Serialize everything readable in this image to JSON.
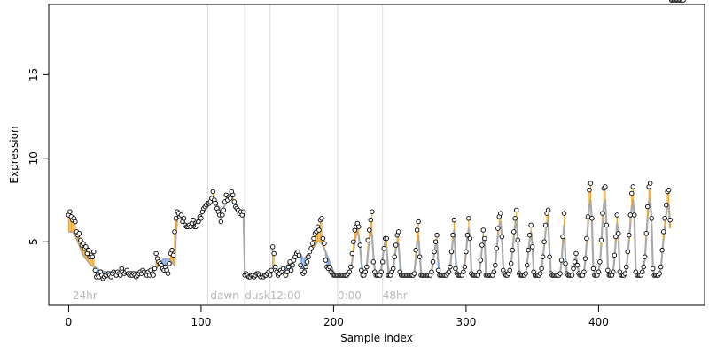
{
  "chart_data": {
    "type": "scatter",
    "title": "",
    "xlabel": "Sample index",
    "ylabel": "Expression",
    "xlim": [
      -15,
      480
    ],
    "ylim": [
      1.2,
      19.2
    ],
    "x_ticks": [
      0,
      100,
      200,
      300,
      400
    ],
    "x_tick_labels": [
      "0",
      "100",
      "200",
      "300",
      "400"
    ],
    "y_ticks": [
      5,
      10,
      15
    ],
    "y_tick_labels": [
      "5",
      "10",
      "15"
    ],
    "grid": false,
    "legend": "none",
    "colors": {
      "trend_line": "#aaaaaa",
      "residual_up": "#f5a623",
      "residual_down": "#7ea7e0",
      "point_fill": "#ffffff",
      "point_stroke": "#000000",
      "divider": "#dcdcdc",
      "annotation_text": "#b8b8b8"
    },
    "segments": [
      {
        "label": "24hr",
        "x": 3
      },
      {
        "label": "dawn",
        "x": 107
      },
      {
        "label": "dusk",
        "x": 133
      },
      {
        "label": "12:00",
        "x": 152
      },
      {
        "label": "0:00",
        "x": 203
      },
      {
        "label": "48hr",
        "x": 237
      }
    ],
    "dividers_x": [
      105,
      133,
      152,
      203,
      237
    ],
    "points_x": [
      0,
      1,
      2,
      3,
      4,
      5,
      6,
      7,
      8,
      9,
      10,
      11,
      12,
      13,
      14,
      15,
      16,
      17,
      18,
      19,
      20,
      21,
      22,
      23,
      24,
      25,
      26,
      27,
      28,
      29,
      30,
      31,
      32,
      33,
      34,
      35,
      36,
      37,
      38,
      39,
      40,
      41,
      42,
      43,
      44,
      45,
      46,
      47,
      48,
      49,
      50,
      51,
      52,
      53,
      54,
      55,
      56,
      57,
      58,
      59,
      60,
      61,
      62,
      63,
      64,
      65,
      66,
      67,
      68,
      69,
      70,
      71,
      72,
      73,
      74,
      75,
      76,
      77,
      78,
      79,
      80,
      81,
      82,
      83,
      84,
      85,
      86,
      87,
      88,
      89,
      90,
      91,
      92,
      93,
      94,
      95,
      96,
      97,
      98,
      99,
      100,
      101,
      102,
      103,
      104,
      105,
      106,
      107,
      108,
      109,
      110,
      111,
      112,
      113,
      114,
      115,
      116,
      117,
      118,
      119,
      120,
      121,
      122,
      123,
      124,
      125,
      126,
      127,
      128,
      129,
      130,
      131,
      132,
      133,
      134,
      135,
      136,
      137,
      138,
      139,
      140,
      141,
      142,
      143,
      144,
      145,
      146,
      147,
      148,
      149,
      150,
      151,
      152,
      153,
      154,
      155,
      156,
      157,
      158,
      159,
      160,
      161,
      162,
      163,
      164,
      165,
      166,
      167,
      168,
      169,
      170,
      171,
      172,
      173,
      174,
      175,
      176,
      177,
      178,
      179,
      180,
      181,
      182,
      183,
      184,
      185,
      186,
      187,
      188,
      189,
      190,
      191,
      192,
      193,
      194,
      195,
      196,
      197,
      198,
      199,
      200,
      201,
      202,
      203,
      204,
      205,
      206,
      207,
      208,
      209,
      210,
      211,
      212,
      213,
      214,
      215,
      216,
      217,
      218,
      219,
      220,
      221,
      222,
      223,
      224,
      225,
      226,
      227,
      228,
      229,
      230,
      231,
      232,
      233,
      234,
      235,
      236,
      237,
      238,
      239,
      240,
      241,
      242,
      243,
      244,
      245,
      246,
      247,
      248,
      249,
      250,
      251,
      252,
      253,
      254,
      255,
      256,
      257,
      258,
      259,
      260,
      261,
      262,
      263,
      264,
      265,
      266,
      267,
      268,
      269,
      270,
      271,
      272,
      273,
      274,
      275,
      276,
      277,
      278,
      279,
      280,
      281,
      282,
      283,
      284,
      285,
      286,
      287,
      288,
      289,
      290,
      291,
      292,
      293,
      294,
      295,
      296,
      297,
      298,
      299,
      300,
      301,
      302,
      303,
      304,
      305,
      306,
      307,
      308,
      309,
      310,
      311,
      312,
      313,
      314,
      315,
      316,
      317,
      318,
      319,
      320,
      321,
      322,
      323,
      324,
      325,
      326,
      327,
      328,
      329,
      330,
      331,
      332,
      333,
      334,
      335,
      336,
      337,
      338,
      339,
      340,
      341,
      342,
      343,
      344,
      345,
      346,
      347,
      348,
      349,
      350,
      351,
      352,
      353,
      354,
      355,
      356,
      357,
      358,
      359,
      360,
      361,
      362,
      363,
      364,
      365,
      366,
      367,
      368,
      369,
      370,
      371,
      372,
      373,
      374,
      375,
      376,
      377,
      378,
      379,
      380,
      381,
      382,
      383,
      384,
      385,
      386,
      387,
      388,
      389,
      390,
      391,
      392,
      393,
      394,
      395,
      396,
      397,
      398,
      399,
      400,
      401,
      402,
      403,
      404,
      405,
      406,
      407,
      408,
      409,
      410,
      411,
      412,
      413,
      414,
      415,
      416,
      417,
      418,
      419,
      420,
      421,
      422,
      423,
      424,
      425,
      426,
      427,
      428,
      429,
      430,
      431,
      432,
      433,
      434,
      435,
      436,
      437,
      438,
      439,
      440,
      441,
      442,
      443,
      444,
      445,
      446,
      447,
      448,
      449,
      450,
      451,
      452,
      453,
      454,
      455,
      456,
      457,
      458,
      459,
      460,
      461,
      462,
      463,
      464
    ],
    "points_y": [
      6.6,
      6.8,
      6.5,
      6.3,
      6.4,
      6.2,
      5.6,
      5.4,
      5.5,
      5.1,
      4.8,
      4.9,
      4.6,
      4.7,
      4.3,
      4.5,
      4.1,
      4.2,
      4.1,
      4.4,
      3.3,
      2.9,
      3.0,
      2.9,
      3.2,
      3.0,
      2.8,
      2.9,
      3.0,
      3.0,
      3.1,
      3.0,
      2.9,
      3.1,
      3.2,
      3.1,
      3.0,
      3.2,
      3.1,
      3.0,
      3.4,
      3.2,
      3.1,
      3.2,
      3.3,
      3.1,
      3.0,
      3.1,
      3.0,
      3.1,
      3.0,
      2.9,
      3.0,
      3.1,
      3.2,
      3.1,
      3.3,
      3.2,
      3.1,
      3.0,
      3.2,
      3.0,
      3.3,
      3.1,
      3.0,
      3.4,
      4.3,
      4.0,
      3.8,
      3.7,
      3.6,
      3.4,
      3.3,
      3.5,
      3.3,
      3.1,
      3.7,
      4.3,
      4.5,
      4.2,
      5.6,
      6.4,
      6.8,
      6.7,
      6.5,
      6.6,
      6.2,
      6.4,
      6.0,
      5.9,
      5.9,
      6.0,
      5.9,
      6.1,
      6.3,
      5.9,
      5.9,
      6.0,
      6.2,
      6.5,
      6.4,
      6.8,
      7.0,
      7.1,
      7.2,
      7.3,
      7.3,
      7.4,
      7.6,
      8.0,
      7.5,
      7.3,
      7.0,
      6.8,
      6.6,
      6.2,
      6.6,
      6.9,
      7.4,
      7.8,
      7.5,
      7.7,
      7.6,
      8.0,
      7.8,
      7.4,
      7.1,
      7.0,
      6.9,
      6.7,
      6.8,
      6.6,
      6.8,
      3.0,
      3.1,
      3.0,
      2.9,
      2.9,
      3.0,
      3.0,
      2.9,
      3.0,
      3.1,
      3.1,
      3.0,
      2.9,
      3.0,
      2.9,
      3.0,
      3.0,
      3.1,
      3.2,
      3.0,
      3.3,
      4.7,
      4.3,
      3.5,
      3.2,
      3.0,
      3.1,
      3.3,
      3.2,
      3.4,
      3.1,
      3.0,
      3.2,
      3.5,
      3.8,
      3.3,
      3.6,
      3.9,
      4.1,
      4.3,
      4.4,
      4.2,
      3.6,
      3.3,
      3.1,
      3.2,
      3.5,
      3.8,
      4.1,
      4.4,
      4.6,
      4.9,
      5.2,
      5.5,
      5.6,
      5.9,
      5.7,
      6.3,
      6.4,
      5.2,
      4.9,
      3.9,
      3.5,
      3.4,
      3.5,
      3.2,
      3.1,
      3.0,
      3.0,
      3.0,
      3.0,
      3.0,
      3.0,
      3.0,
      3.0,
      3.0,
      3.0,
      3.0,
      3.1,
      3.2,
      3.5,
      4.3,
      5.0,
      5.7,
      5.9,
      6.1,
      5.9,
      4.8,
      3.3,
      3.0,
      3.0,
      3.2,
      3.5,
      5.1,
      5.7,
      6.3,
      6.8,
      3.8,
      3.2,
      3.0,
      3.0,
      3.0,
      3.0,
      3.2,
      3.8,
      4.6,
      5.2,
      5.2,
      3.0,
      3.0,
      3.0,
      3.2,
      3.4,
      4.1,
      4.8,
      5.4,
      5.6,
      3.2,
      3.0,
      3.0,
      3.0,
      3.0,
      3.0,
      3.0,
      3.0,
      3.0,
      3.0,
      3.0,
      3.1,
      4.5,
      5.7,
      6.2,
      4.1,
      3.0,
      3.0,
      3.0,
      3.0,
      3.0,
      3.0,
      3.0,
      3.0,
      3.2,
      3.8,
      4.4,
      5.0,
      5.4,
      3.3,
      3.0,
      3.0,
      3.0,
      3.0,
      3.0,
      3.0,
      3.1,
      3.2,
      3.5,
      4.4,
      5.4,
      6.3,
      3.4,
      3.1,
      3.0,
      3.0,
      3.0,
      3.0,
      3.2,
      3.5,
      4.4,
      5.4,
      6.4,
      5.2,
      3.1,
      3.0,
      3.0,
      3.0,
      3.0,
      3.0,
      3.2,
      3.9,
      4.8,
      5.7,
      5.2,
      3.0,
      3.0,
      3.0,
      3.0,
      3.0,
      3.0,
      3.2,
      3.6,
      4.6,
      5.8,
      6.5,
      6.7,
      5.3,
      3.3,
      3.1,
      3.0,
      3.0,
      3.1,
      3.3,
      3.7,
      4.5,
      5.6,
      6.4,
      6.9,
      5.1,
      3.1,
      3.0,
      3.0,
      3.0,
      3.0,
      3.1,
      3.6,
      4.5,
      5.4,
      6.0,
      4.7,
      3.2,
      3.0,
      3.0,
      3.0,
      3.0,
      3.1,
      3.4,
      4.1,
      5.0,
      6.0,
      6.7,
      6.9,
      4.1,
      3.1,
      3.0,
      3.0,
      3.0,
      3.0,
      3.0,
      3.0,
      3.1,
      3.9,
      5.3,
      6.7,
      3.7,
      3.1,
      3.0,
      3.0,
      3.0,
      3.0,
      3.4,
      3.8,
      4.3,
      3.6,
      3.1,
      3.0,
      3.0,
      3.0,
      3.2,
      4.0,
      5.2,
      6.5,
      8.1,
      8.5,
      6.4,
      3.4,
      3.0,
      3.0,
      3.0,
      3.2,
      3.8,
      5.1,
      6.7,
      8.2,
      8.3,
      6.0,
      3.3,
      3.0,
      3.0,
      3.0,
      3.2,
      4.2,
      5.3,
      6.6,
      5.5,
      3.2,
      3.0,
      3.0,
      3.0,
      3.1,
      3.5,
      4.4,
      5.4,
      6.6,
      7.9,
      8.3,
      6.6,
      3.2,
      3.0,
      3.0,
      3.0,
      3.0,
      3.2,
      3.5,
      4.1,
      5.5,
      7.1,
      8.3,
      8.5,
      6.4,
      3.4,
      3.0,
      3.0,
      3.0,
      3.0,
      3.1,
      3.5,
      4.5,
      5.6,
      6.4,
      7.2,
      8.0,
      8.1,
      6.3
    ],
    "baseline_y": [
      5.6,
      5.6,
      5.6,
      5.6,
      5.5,
      5.4,
      5.2,
      5.0,
      4.8,
      4.6,
      4.4,
      4.2,
      4.1,
      4.0,
      3.9,
      3.8,
      3.7,
      3.6,
      3.6,
      3.5,
      3.5,
      3.4,
      3.4,
      3.3,
      3.3,
      3.3,
      3.2,
      3.2,
      3.2,
      3.2,
      3.2,
      3.2,
      3.2,
      3.2,
      3.2,
      3.2,
      3.2,
      3.2,
      3.2,
      3.2,
      3.2,
      3.2,
      3.2,
      3.2,
      3.2,
      3.2,
      3.2,
      3.2,
      3.2,
      3.2,
      3.2,
      3.2,
      3.2,
      3.2,
      3.2,
      3.2,
      3.2,
      3.2,
      3.2,
      3.2,
      3.2,
      3.2,
      3.2,
      3.2,
      3.2,
      3.3,
      3.4,
      3.5,
      3.6,
      3.7,
      3.8,
      3.9,
      4.0,
      4.0,
      4.0,
      4.0,
      4.0,
      3.9,
      3.8,
      3.7,
      3.6,
      5.5,
      6.3,
      6.6,
      6.5,
      6.4,
      6.3,
      6.2,
      6.1,
      6.0,
      5.9,
      5.9,
      5.9,
      5.9,
      6.0,
      6.1,
      6.2,
      6.3,
      6.4,
      6.5,
      6.6,
      6.7,
      6.8,
      6.9,
      7.0,
      7.1,
      7.2,
      7.3,
      7.4,
      7.5,
      7.4,
      7.3,
      7.2,
      7.1,
      7.0,
      6.9,
      6.9,
      7.0,
      7.2,
      7.4,
      7.5,
      7.6,
      7.6,
      7.6,
      7.5,
      7.4,
      7.2,
      7.0,
      6.9,
      6.8,
      6.8,
      6.7,
      6.7,
      3.1,
      3.1,
      3.1,
      3.0,
      3.0,
      3.0,
      3.0,
      3.0,
      3.0,
      3.0,
      3.0,
      3.0,
      3.0,
      3.0,
      3.0,
      3.0,
      3.0,
      3.1,
      3.1,
      3.1,
      3.2,
      3.4,
      3.6,
      3.5,
      3.4,
      3.3,
      3.3,
      3.3,
      3.3,
      3.4,
      3.4,
      3.5,
      3.6,
      3.7,
      3.8,
      3.9,
      4.0,
      4.1,
      4.2,
      4.3,
      4.3,
      4.3,
      4.2,
      4.1,
      4.0,
      4.0,
      4.1,
      4.2,
      4.3,
      4.4,
      4.5,
      4.6,
      4.7,
      4.8,
      4.9,
      5.0,
      5.0,
      5.0,
      4.9,
      4.8,
      4.6,
      4.4,
      4.2,
      4.0,
      3.8,
      3.6,
      3.4,
      3.2,
      3.1,
      3.0,
      3.0,
      3.0,
      3.0,
      3.0,
      3.0,
      3.0,
      3.0,
      3.0,
      3.1,
      3.2,
      3.4,
      3.8,
      4.4,
      5.0,
      5.4,
      5.6,
      5.4,
      4.7,
      3.8,
      3.2,
      3.0,
      3.1,
      3.5,
      4.4,
      5.2,
      5.6,
      5.4,
      4.2,
      3.4,
      3.0,
      3.0,
      3.0,
      3.1,
      3.4,
      4.0,
      4.6,
      5.0,
      4.7,
      3.6,
      3.1,
      3.0,
      3.1,
      3.4,
      4.0,
      4.6,
      5.0,
      4.9,
      3.8,
      3.2,
      3.0,
      3.0,
      3.0,
      3.0,
      3.0,
      3.0,
      3.0,
      3.0,
      3.0,
      3.2,
      4.0,
      5.0,
      5.4,
      4.3,
      3.2,
      3.0,
      3.0,
      3.0,
      3.0,
      3.0,
      3.0,
      3.0,
      3.2,
      3.7,
      4.3,
      4.8,
      5.0,
      3.8,
      3.1,
      3.0,
      3.0,
      3.0,
      3.0,
      3.0,
      3.1,
      3.2,
      3.5,
      4.3,
      5.1,
      5.7,
      4.2,
      3.2,
      3.0,
      3.0,
      3.0,
      3.0,
      3.2,
      3.6,
      4.4,
      5.2,
      5.8,
      5.2,
      3.3,
      3.0,
      3.0,
      3.0,
      3.0,
      3.0,
      3.2,
      3.8,
      4.6,
      5.3,
      5.1,
      3.2,
      3.0,
      3.0,
      3.0,
      3.0,
      3.0,
      3.2,
      3.6,
      4.5,
      5.4,
      6.0,
      6.2,
      5.4,
      3.5,
      3.1,
      3.0,
      3.0,
      3.1,
      3.3,
      3.7,
      4.4,
      5.3,
      6.0,
      6.3,
      5.2,
      3.3,
      3.0,
      3.0,
      3.0,
      3.0,
      3.1,
      3.6,
      4.4,
      5.1,
      5.6,
      4.8,
      3.3,
      3.0,
      3.0,
      3.0,
      3.0,
      3.1,
      3.4,
      4.0,
      4.8,
      5.6,
      6.1,
      6.3,
      4.4,
      3.2,
      3.0,
      3.0,
      3.0,
      3.0,
      3.0,
      3.0,
      3.1,
      3.8,
      4.9,
      6.0,
      4.1,
      3.2,
      3.0,
      3.0,
      3.0,
      3.0,
      3.3,
      3.7,
      4.1,
      3.7,
      3.2,
      3.0,
      3.0,
      3.0,
      3.2,
      3.9,
      4.9,
      6.0,
      7.2,
      7.5,
      6.2,
      3.6,
      3.1,
      3.0,
      3.0,
      3.2,
      3.7,
      4.8,
      6.2,
      7.3,
      7.5,
      5.9,
      3.4,
      3.0,
      3.0,
      3.0,
      3.2,
      4.0,
      5.0,
      6.1,
      5.4,
      3.3,
      3.0,
      3.0,
      3.0,
      3.1,
      3.4,
      4.2,
      5.1,
      6.1,
      7.1,
      7.5,
      6.4,
      3.4,
      3.0,
      3.0,
      3.0,
      3.0,
      3.2,
      3.5,
      4.0,
      5.2,
      6.5,
      7.4,
      7.6,
      6.2,
      3.5,
      3.0,
      3.0,
      3.0,
      3.0,
      3.1,
      3.4,
      4.3,
      5.2,
      5.9,
      6.6,
      7.2,
      7.3,
      5.8
    ]
  }
}
